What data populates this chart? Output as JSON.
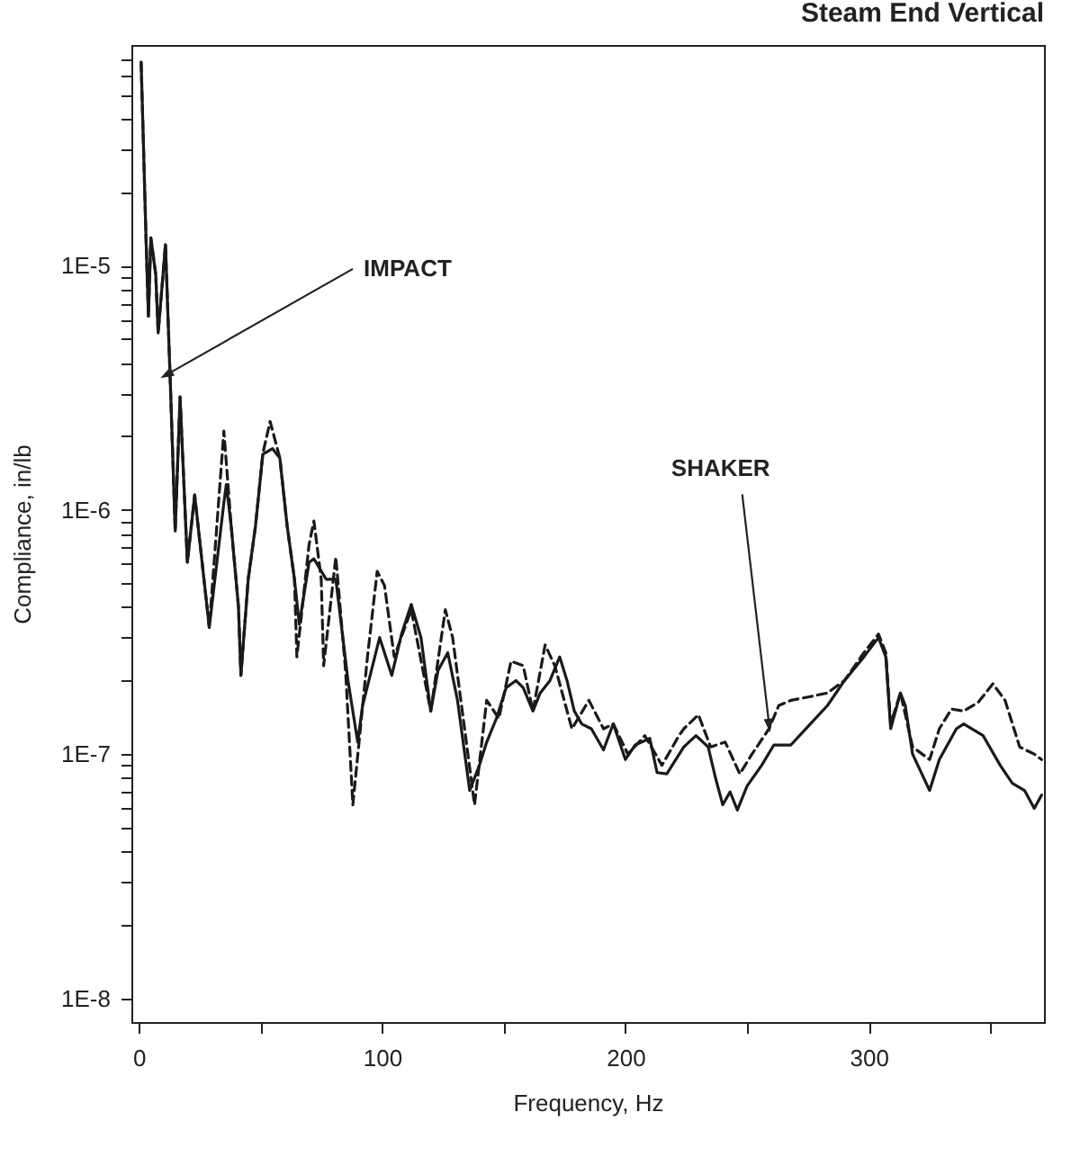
{
  "chart_data": {
    "type": "line",
    "title": "Steam End Vertical",
    "xlabel": "Frequency, Hz",
    "ylabel": "Compliance, in/lb",
    "log": "y",
    "xlim": [
      -3,
      372
    ],
    "ylim": [
      8e-09,
      8e-05
    ],
    "xticks": [
      0,
      {
        "value": 50,
        "label": null
      },
      100,
      {
        "value": 150,
        "label": null
      },
      200,
      {
        "value": 250,
        "label": null
      },
      300,
      {
        "value": 350,
        "label": null
      }
    ],
    "yticks": [
      {
        "value": 1e-08,
        "label": "1E-8"
      },
      {
        "value": 2e-08,
        "label": null
      },
      {
        "value": 3e-08,
        "label": null
      },
      {
        "value": 4e-08,
        "label": null
      },
      {
        "value": 5e-08,
        "label": null
      },
      {
        "value": 6e-08,
        "label": null
      },
      {
        "value": 7e-08,
        "label": null
      },
      {
        "value": 8e-08,
        "label": null
      },
      {
        "value": 9e-08,
        "label": null
      },
      {
        "value": 1e-07,
        "label": "1E-7"
      },
      {
        "value": 2e-07,
        "label": null
      },
      {
        "value": 3e-07,
        "label": null
      },
      {
        "value": 4e-07,
        "label": null
      },
      {
        "value": 5e-07,
        "label": null
      },
      {
        "value": 6e-07,
        "label": null
      },
      {
        "value": 7e-07,
        "label": null
      },
      {
        "value": 8e-07,
        "label": null
      },
      {
        "value": 9e-07,
        "label": null
      },
      {
        "value": 1e-06,
        "label": "1E-6"
      },
      {
        "value": 2e-06,
        "label": null
      },
      {
        "value": 3e-06,
        "label": null
      },
      {
        "value": 4e-06,
        "label": null
      },
      {
        "value": 5e-06,
        "label": null
      },
      {
        "value": 6e-06,
        "label": null
      },
      {
        "value": 7e-06,
        "label": null
      },
      {
        "value": 8e-06,
        "label": null
      },
      {
        "value": 9e-06,
        "label": null
      },
      {
        "value": 1e-05,
        "label": "1E-5"
      },
      {
        "value": 2e-05,
        "label": null
      },
      {
        "value": 3e-05,
        "label": null
      },
      {
        "value": 4e-05,
        "label": null
      },
      {
        "value": 5e-05,
        "label": null
      },
      {
        "value": 6e-05,
        "label": null
      },
      {
        "value": 7e-05,
        "label": null
      }
    ],
    "grid": false,
    "marker": "none",
    "series": [
      {
        "color": "#1a1a1a",
        "line_style": "solid",
        "x": [
          1,
          2,
          3,
          4,
          5,
          7,
          8,
          10,
          11,
          13,
          15,
          17,
          20,
          23,
          29,
          35,
          36,
          38,
          41,
          42,
          45,
          48,
          51,
          55,
          58,
          61,
          64,
          66,
          70,
          72,
          77,
          81,
          86,
          90,
          92,
          99,
          104,
          108,
          112,
          116,
          120,
          123,
          127,
          131,
          136,
          140,
          143,
          147,
          151,
          155,
          158,
          162,
          165,
          169,
          173,
          176,
          179,
          182,
          186,
          191,
          195,
          200,
          204,
          210,
          213,
          217,
          224,
          229,
          234,
          237,
          240,
          243,
          246,
          250,
          256,
          261,
          268,
          276,
          283,
          290,
          298,
          304,
          307,
          309,
          313,
          315,
          318,
          325,
          329,
          336,
          339,
          347,
          354,
          359,
          364,
          368,
          371
        ],
        "values": [
          6.8e-05,
          3e-05,
          1.3e-05,
          6.2e-06,
          1.3e-05,
          9.2e-06,
          5.3e-06,
          9.2e-06,
          1.22e-05,
          3.3e-06,
          8.2e-07,
          2.9e-06,
          6.1e-07,
          1.15e-06,
          3.3e-07,
          1.07e-06,
          1.27e-06,
          8.6e-07,
          4e-07,
          2.1e-07,
          5.2e-07,
          8.6e-07,
          1.69e-06,
          1.78e-06,
          1.63e-06,
          8.6e-07,
          5.2e-07,
          3.4e-07,
          6.1e-07,
          6.3e-07,
          5.2e-07,
          5.2e-07,
          2e-07,
          1.12e-07,
          1.58e-07,
          3e-07,
          2.1e-07,
          3.1e-07,
          4.1e-07,
          3e-07,
          1.5e-07,
          2.2e-07,
          2.6e-07,
          1.66e-07,
          7.1e-08,
          9e-08,
          1.12e-07,
          1.4e-07,
          1.87e-07,
          2e-07,
          1.87e-07,
          1.5e-07,
          1.78e-07,
          2e-07,
          2.5e-07,
          2e-07,
          1.5e-07,
          1.33e-07,
          1.27e-07,
          1.04e-07,
          1.33e-07,
          9.5e-08,
          1.09e-07,
          1.16e-07,
          8.4e-08,
          8.3e-08,
          1.07e-07,
          1.19e-07,
          1.07e-07,
          8e-08,
          6.2e-08,
          7e-08,
          5.9e-08,
          7.4e-08,
          9e-08,
          1.09e-07,
          1.09e-07,
          1.33e-07,
          1.58e-07,
          2e-07,
          2.5e-07,
          3e-07,
          2.5e-07,
          1.27e-07,
          1.78e-07,
          1.58e-07,
          1e-07,
          7.1e-08,
          9.5e-08,
          1.27e-07,
          1.33e-07,
          1.19e-07,
          9e-08,
          7.6e-08,
          7.1e-08,
          6e-08,
          6.8e-08
        ]
      },
      {
        "color": "#1a1a1a",
        "line_style": "dashed",
        "x": [
          1,
          2,
          3,
          4,
          5,
          7,
          8,
          10,
          11,
          13,
          15,
          17,
          20,
          23,
          29,
          35,
          38,
          41,
          42,
          45,
          48,
          51,
          54,
          58,
          61,
          64,
          65,
          70,
          72,
          75,
          76,
          81,
          85,
          88,
          94,
          98,
          101,
          105,
          112,
          120,
          126,
          129,
          138,
          143,
          148,
          153,
          158,
          162,
          167,
          171,
          178,
          185,
          191,
          195,
          201,
          208,
          215,
          222,
          224,
          230,
          235,
          241,
          247,
          252,
          259,
          263,
          268,
          276,
          283,
          290,
          298,
          304,
          307,
          309,
          313,
          318,
          325,
          329,
          334,
          339,
          345,
          351,
          356,
          362,
          368,
          371
        ],
        "values": [
          6.8e-05,
          3e-05,
          1.3e-05,
          6.2e-06,
          1.3e-05,
          9.2e-06,
          5.3e-06,
          9.2e-06,
          1.22e-05,
          3.3e-06,
          8.2e-07,
          2.9e-06,
          6.1e-07,
          1.15e-06,
          3.3e-07,
          2.1e-06,
          8.6e-07,
          4e-07,
          2.1e-07,
          5.2e-07,
          8.6e-07,
          1.7e-06,
          2.3e-06,
          1.63e-06,
          8.6e-07,
          5.2e-07,
          2.5e-07,
          7.2e-07,
          9e-07,
          5.2e-07,
          2.3e-07,
          6.4e-07,
          2.2e-07,
          6.2e-08,
          2.5e-07,
          5.6e-07,
          4.9e-07,
          2.5e-07,
          3.9e-07,
          1.5e-07,
          3.9e-07,
          3e-07,
          6.2e-08,
          1.66e-07,
          1.4e-07,
          2.4e-07,
          2.3e-07,
          1.5e-07,
          2.8e-07,
          2.3e-07,
          1.27e-07,
          1.66e-07,
          1.27e-07,
          1.33e-07,
          1e-07,
          1.19e-07,
          9e-08,
          1.19e-07,
          1.27e-07,
          1.45e-07,
          1.07e-07,
          1.12e-07,
          8.3e-08,
          1e-07,
          1.27e-07,
          1.58e-07,
          1.66e-07,
          1.72e-07,
          1.78e-07,
          2e-07,
          2.6e-07,
          3.1e-07,
          2.6e-07,
          1.33e-07,
          1.78e-07,
          1.07e-07,
          9.5e-08,
          1.27e-07,
          1.53e-07,
          1.5e-07,
          1.63e-07,
          1.94e-07,
          1.66e-07,
          1.07e-07,
          1e-07,
          9.5e-08
        ]
      }
    ],
    "annotations": [
      {
        "text": "IMPACT",
        "x": 12,
        "y": 3.6e-06
      },
      {
        "text": "SHAKER",
        "x": 259,
        "y": 1.33e-07
      }
    ]
  }
}
